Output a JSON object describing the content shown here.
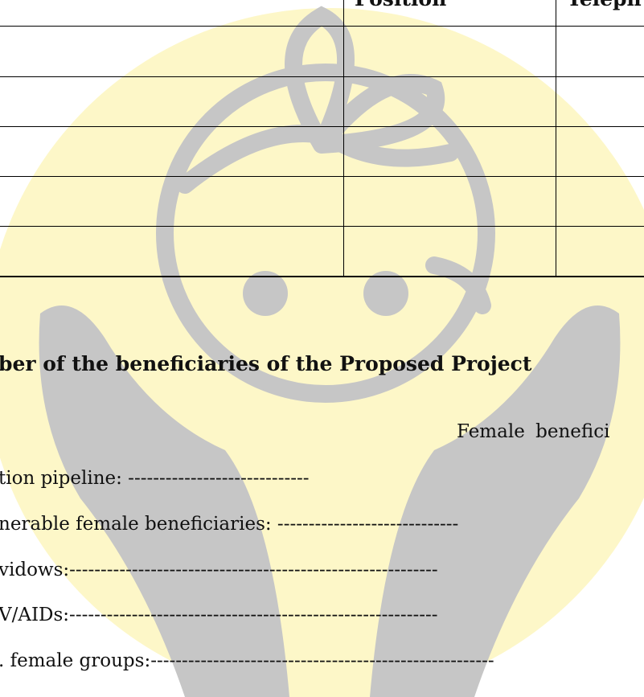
{
  "table": {
    "header": [
      "Position",
      "Teleph"
    ]
  },
  "section": {
    "heading": "ber of the beneficiaries of the Proposed Project",
    "column_label": "Female benefici",
    "fields": [
      "tion pipeline: -----------------------------",
      "nerable female beneficiaries: -----------------------------",
      "vidows:-----------------------------------------------------------",
      "V/AIDs:-----------------------------------------------------------",
      ". female groups:-------------------------------------------------------"
    ]
  }
}
